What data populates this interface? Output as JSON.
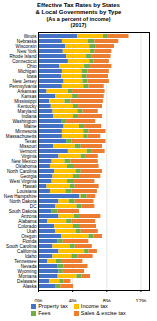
{
  "chart_data": {
    "type": "bar",
    "orientation": "horizontal",
    "stacked": true,
    "title": "Effective Tax Rates by States\n& Local Governments by Type",
    "subtitle": "(As a percent of income)\n(2017)",
    "categories": [
      "Illinois",
      "Nebraska",
      "Wisconsin",
      "New York",
      "Rhode Island",
      "Connecticut",
      "Ohio",
      "Michigan",
      "Iowa",
      "New Jersey",
      "Pennsylvania",
      "Arkansas",
      "Kansas",
      "Mississippi",
      "Kentucky",
      "Maryland",
      "Indiana",
      "Washington",
      "Maine",
      "Minnesota",
      "Massachusetts",
      "Texas",
      "Missouri",
      "Vermont",
      "Virginia",
      "New Mexico",
      "Oklahoma",
      "North Carolina",
      "Georgia",
      "West Virginia",
      "Hawaii",
      "Louisiana",
      "New Hampshire",
      "North Dakota",
      "DC",
      "South Dakota",
      "Arizona",
      "Alabama",
      "Colorado",
      "Utah",
      "Oregon",
      "Florida",
      "South Carolina",
      "California",
      "Idaho",
      "Tennessee",
      "Nevada",
      "Wyoming",
      "Montana",
      "Delaware",
      "Alaska"
    ],
    "series": [
      {
        "name": "Property tax",
        "color": "#4472c4",
        "values": [
          4.6,
          2.8,
          3.2,
          2.9,
          3.3,
          3.5,
          2.5,
          2.8,
          2.7,
          3.0,
          2.8,
          1.0,
          2.0,
          1.3,
          1.5,
          1.7,
          1.8,
          2.7,
          3.0,
          2.8,
          2.8,
          3.3,
          1.8,
          3.5,
          2.4,
          1.6,
          1.4,
          1.9,
          1.7,
          1.6,
          1.0,
          1.4,
          4.8,
          2.4,
          2.0,
          1.6,
          2.4,
          1.1,
          1.9,
          2.0,
          2.7,
          2.3,
          1.7,
          2.4,
          1.7,
          1.1,
          2.3,
          2.4,
          2.3,
          1.3,
          2.0
        ]
      },
      {
        "name": "Income tax",
        "color": "#ffc000",
        "values": [
          3.0,
          3.0,
          2.8,
          3.2,
          2.3,
          2.5,
          2.9,
          2.3,
          2.4,
          2.2,
          2.5,
          2.5,
          2.0,
          1.8,
          2.6,
          2.9,
          2.3,
          0.0,
          1.8,
          2.5,
          2.5,
          0.0,
          2.5,
          2.2,
          2.6,
          1.5,
          2.0,
          2.5,
          2.4,
          1.8,
          2.7,
          1.8,
          0.2,
          1.2,
          2.5,
          0.0,
          1.8,
          2.2,
          2.2,
          2.4,
          3.2,
          0.0,
          2.0,
          3.0,
          2.2,
          1.0,
          0.0,
          0.0,
          2.2,
          1.2,
          0.0
        ]
      },
      {
        "name": "Fees",
        "color": "#70ad47",
        "values": [
          0.5,
          0.8,
          0.7,
          0.5,
          0.7,
          0.5,
          0.7,
          0.7,
          0.6,
          0.6,
          0.6,
          0.5,
          0.7,
          0.7,
          0.6,
          0.6,
          0.6,
          0.6,
          0.6,
          0.6,
          0.5,
          0.6,
          0.7,
          0.6,
          0.5,
          0.7,
          0.7,
          0.6,
          0.7,
          0.7,
          0.6,
          0.7,
          0.7,
          0.7,
          0.6,
          0.7,
          0.6,
          0.6,
          0.7,
          0.6,
          0.6,
          0.6,
          0.6,
          0.5,
          0.7,
          0.6,
          0.7,
          0.5,
          0.6,
          0.5,
          0.6
        ]
      },
      {
        "name": "Sales & excise tax",
        "color": "#ed7d31",
        "values": [
          2.5,
          2.8,
          2.2,
          2.0,
          2.2,
          1.8,
          2.5,
          2.5,
          2.5,
          2.5,
          1.8,
          3.8,
          3.0,
          3.8,
          2.8,
          1.8,
          2.8,
          3.4,
          2.0,
          2.0,
          1.5,
          4.0,
          2.5,
          1.5,
          1.5,
          3.2,
          3.0,
          2.5,
          2.5,
          2.5,
          2.8,
          3.0,
          1.0,
          2.2,
          1.5,
          2.5,
          2.5,
          2.8,
          2.0,
          2.0,
          1.0,
          3.0,
          2.0,
          1.0,
          1.8,
          2.5,
          2.8,
          2.5,
          1.0,
          0.8,
          1.5
        ]
      }
    ],
    "xlim": [
      0,
      13
    ],
    "xticks": [
      {
        "value": 0,
        "label": "0%"
      },
      {
        "value": 4,
        "label": "4%"
      },
      {
        "value": 8,
        "label": "8%"
      },
      {
        "value": 12,
        "label": "12%"
      }
    ],
    "grid": true,
    "legend": "bottom"
  }
}
